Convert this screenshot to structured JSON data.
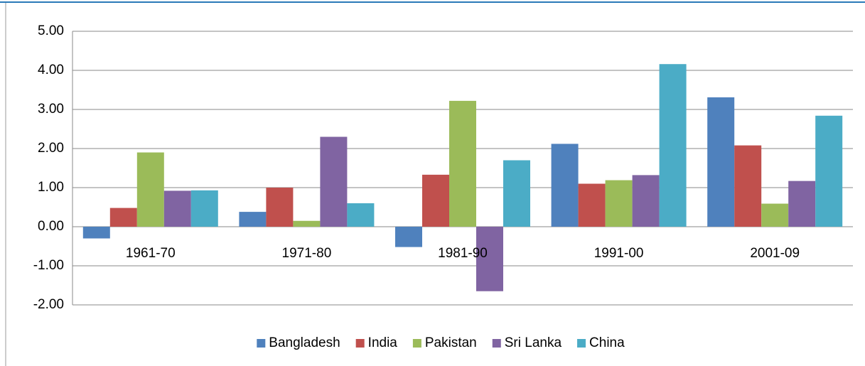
{
  "chart_data": {
    "type": "bar",
    "categories": [
      "1961-70",
      "1971-80",
      "1981-90",
      "1991-00",
      "2001-09"
    ],
    "series": [
      {
        "name": "Bangladesh",
        "color": "#4f81bd",
        "values": [
          -0.3,
          0.38,
          -0.52,
          2.12,
          3.31
        ]
      },
      {
        "name": "India",
        "color": "#c0504d",
        "values": [
          0.48,
          1.0,
          1.33,
          1.1,
          2.08
        ]
      },
      {
        "name": "Pakistan",
        "color": "#9bbb59",
        "values": [
          1.9,
          0.15,
          3.22,
          1.19,
          0.59
        ]
      },
      {
        "name": "Sri Lanka",
        "color": "#8064a2",
        "values": [
          0.92,
          2.3,
          -1.65,
          1.32,
          1.17
        ]
      },
      {
        "name": "China",
        "color": "#4bacc6",
        "values": [
          0.93,
          0.6,
          1.7,
          4.16,
          2.84
        ]
      }
    ],
    "ylim": [
      -2,
      5
    ],
    "yticks": [
      {
        "value": -2,
        "label": "-2.00"
      },
      {
        "value": -1,
        "label": "-1.00"
      },
      {
        "value": 0,
        "label": "0.00"
      },
      {
        "value": 1,
        "label": "1.00"
      },
      {
        "value": 2,
        "label": "2.00"
      },
      {
        "value": 3,
        "label": "3.00"
      },
      {
        "value": 4,
        "label": "4.00"
      },
      {
        "value": 5,
        "label": "5.00"
      }
    ],
    "grid": true,
    "legend": "bottom"
  }
}
